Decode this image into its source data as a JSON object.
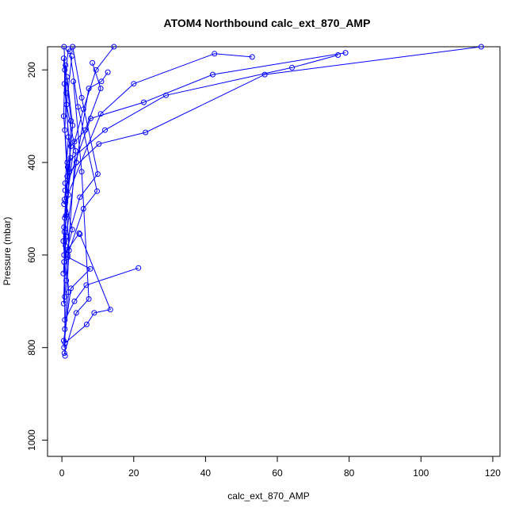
{
  "chart_data": {
    "type": "line",
    "title": "ATOM4 Northbound calc_ext_870_AMP",
    "xlabel": "calc_ext_870_AMP",
    "ylabel": "Pressure (mbar)",
    "xlim": [
      -4,
      122
    ],
    "ylim": [
      1035,
      150
    ],
    "y_reversed": true,
    "x_ticks": [
      0,
      20,
      40,
      60,
      80,
      100,
      120
    ],
    "y_ticks": [
      200,
      400,
      600,
      800,
      1000
    ],
    "x_tick_labels": [
      "0",
      "20",
      "40",
      "60",
      "80",
      "100",
      "120"
    ],
    "y_tick_labels": [
      "200",
      "400",
      "600",
      "800",
      "1000"
    ],
    "grid": false,
    "legend": "none",
    "series_color": "#0000ff",
    "marker": "open-circle",
    "series": [
      {
        "x": [
          116.8,
          56.5,
          23.3,
          10.3,
          2.1
        ],
        "y": [
          150,
          210,
          335,
          360,
          420
        ]
      },
      {
        "x": [
          76.9,
          64.1,
          29.0,
          12.0,
          1.5
        ],
        "y": [
          168,
          195,
          255,
          330,
          400
        ]
      },
      {
        "x": [
          79.0,
          42.0,
          22.8,
          8.0,
          0.9
        ],
        "y": [
          163,
          210,
          270,
          305,
          460
        ]
      },
      {
        "x": [
          53.0,
          42.5,
          20.0,
          10.8,
          0.6
        ],
        "y": [
          172,
          165,
          230,
          295,
          490
        ]
      },
      {
        "x": [
          14.5,
          9.5,
          6.0,
          3.5,
          0.8
        ],
        "y": [
          150,
          200,
          285,
          355,
          520
        ]
      },
      {
        "x": [
          12.8,
          11.0,
          7.5,
          4.0,
          1.2,
          0.4
        ],
        "y": [
          205,
          225,
          240,
          400,
          560,
          640
        ]
      },
      {
        "x": [
          8.5,
          10.8,
          6.5,
          2.5,
          0.7
        ],
        "y": [
          185,
          240,
          330,
          365,
          480
        ]
      },
      {
        "x": [
          3.0,
          5.5,
          10.0,
          5.0,
          1.0
        ],
        "y": [
          150,
          260,
          425,
          475,
          580
        ]
      },
      {
        "x": [
          2.2,
          4.5,
          9.8,
          6.0,
          1.6
        ],
        "y": [
          160,
          280,
          462,
          500,
          600
        ]
      },
      {
        "x": [
          21.3,
          6.8,
          3.5,
          0.8
        ],
        "y": [
          628,
          665,
          700,
          740
        ]
      },
      {
        "x": [
          5.0,
          13.5,
          9.0,
          6.9,
          0.9
        ],
        "y": [
          555,
          718,
          725,
          750,
          790
        ]
      },
      {
        "x": [
          4.8,
          0.6,
          7.9,
          2.5,
          0.5
        ],
        "y": [
          553,
          600,
          630,
          672,
          785
        ]
      },
      {
        "x": [
          3.2,
          5.5,
          7.5,
          4.0,
          0.7
        ],
        "y": [
          225,
          420,
          695,
          725,
          812
        ]
      },
      {
        "x": [
          0.6,
          1.2,
          0.8,
          1.5,
          0.6,
          0.9
        ],
        "y": [
          150,
          250,
          330,
          430,
          540,
          818
        ]
      },
      {
        "x": [
          1.0,
          2.5,
          1.8,
          0.7,
          1.9,
          0.6
        ],
        "y": [
          190,
          310,
          470,
          550,
          680,
          800
        ]
      },
      {
        "x": [
          0.5,
          1.8,
          0.9,
          2.0,
          0.8
        ],
        "y": [
          175,
          345,
          445,
          590,
          760
        ]
      },
      {
        "x": [
          1.8,
          0.7,
          2.4,
          1.1,
          0.5
        ],
        "y": [
          155,
          230,
          390,
          515,
          705
        ]
      },
      {
        "x": [
          2.8,
          1.3,
          3.8,
          1.6,
          0.8
        ],
        "y": [
          170,
          275,
          375,
          605,
          690
        ]
      },
      {
        "x": [
          0.8,
          0.5,
          1.6,
          0.4,
          1.2
        ],
        "y": [
          200,
          300,
          410,
          570,
          655
        ]
      },
      {
        "x": [
          1.4,
          3.0,
          1.0,
          2.9,
          0.6
        ],
        "y": [
          215,
          320,
          485,
          545,
          615
        ]
      }
    ]
  }
}
